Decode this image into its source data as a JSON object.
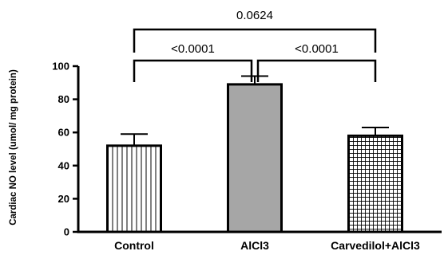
{
  "chart_data": {
    "type": "bar",
    "title": "",
    "xlabel": "",
    "ylabel": "Cardiac NO level (umol/ mg protein)",
    "ylim": [
      0,
      100
    ],
    "yticks": [
      0,
      20,
      40,
      60,
      80,
      100
    ],
    "grid": false,
    "categories": [
      "Control",
      "AlCl3",
      "Carvedilol+AlCl3"
    ],
    "values": [
      52,
      89,
      58
    ],
    "errors": [
      7,
      5,
      5
    ],
    "fills": [
      "vertical-lines",
      "solid-gray",
      "grid"
    ],
    "colors": {
      "gray_bar": "#a6a6a6",
      "stroke": "#000000",
      "background": "#ffffff"
    },
    "significance": [
      {
        "from": 0,
        "to": 1,
        "label": "<0.0001"
      },
      {
        "from": 1,
        "to": 2,
        "label": "<0.0001"
      },
      {
        "from": 0,
        "to": 2,
        "label": "0.0624"
      }
    ]
  }
}
